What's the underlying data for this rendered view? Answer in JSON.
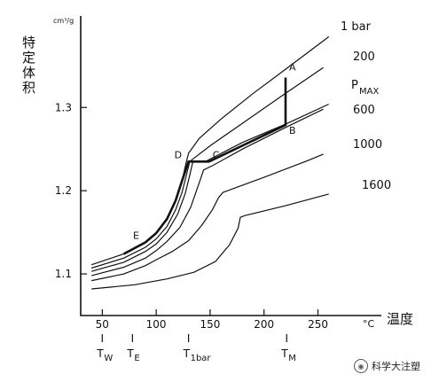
{
  "chart_data": {
    "type": "line",
    "ylabel": "特定体积",
    "yunit": "cm³/g",
    "xlabel": "温度",
    "xunit": "°C",
    "xlim": [
      30,
      280
    ],
    "ylim": [
      1.05,
      1.41
    ],
    "xticks": [
      50,
      100,
      150,
      200,
      250
    ],
    "yticks": [
      1.1,
      1.2,
      1.3
    ],
    "series": [
      {
        "name": "1 bar",
        "points": [
          [
            40,
            1.111
          ],
          [
            70,
            1.124
          ],
          [
            90,
            1.138
          ],
          [
            100,
            1.149
          ],
          [
            110,
            1.166
          ],
          [
            118,
            1.188
          ],
          [
            124,
            1.212
          ],
          [
            128,
            1.235
          ],
          [
            130,
            1.245
          ],
          [
            140,
            1.263
          ],
          [
            160,
            1.286
          ],
          [
            190,
            1.317
          ],
          [
            220,
            1.346
          ],
          [
            260,
            1.385
          ]
        ]
      },
      {
        "name": "200",
        "points": [
          [
            40,
            1.107
          ],
          [
            70,
            1.119
          ],
          [
            90,
            1.132
          ],
          [
            100,
            1.142
          ],
          [
            110,
            1.157
          ],
          [
            118,
            1.177
          ],
          [
            124,
            1.198
          ],
          [
            130,
            1.229
          ],
          [
            131,
            1.235
          ],
          [
            150,
            1.254
          ],
          [
            180,
            1.281
          ],
          [
            220,
            1.317
          ],
          [
            255,
            1.348
          ]
        ]
      },
      {
        "name": "PMAX",
        "points": [
          [
            40,
            1.103
          ],
          [
            70,
            1.114
          ],
          [
            90,
            1.127
          ],
          [
            100,
            1.136
          ],
          [
            110,
            1.15
          ],
          [
            120,
            1.172
          ],
          [
            127,
            1.197
          ],
          [
            131,
            1.218
          ],
          [
            134,
            1.235
          ],
          [
            147,
            1.236
          ],
          [
            180,
            1.258
          ],
          [
            220,
            1.28
          ],
          [
            260,
            1.304
          ]
        ]
      },
      {
        "name": "600",
        "points": [
          [
            40,
            1.098
          ],
          [
            70,
            1.108
          ],
          [
            90,
            1.119
          ],
          [
            100,
            1.128
          ],
          [
            110,
            1.139
          ],
          [
            122,
            1.156
          ],
          [
            132,
            1.18
          ],
          [
            140,
            1.21
          ],
          [
            144,
            1.225
          ],
          [
            152,
            1.23
          ],
          [
            180,
            1.25
          ],
          [
            220,
            1.276
          ],
          [
            255,
            1.298
          ]
        ]
      },
      {
        "name": "1000",
        "points": [
          [
            40,
            1.092
          ],
          [
            70,
            1.1
          ],
          [
            90,
            1.11
          ],
          [
            100,
            1.117
          ],
          [
            115,
            1.127
          ],
          [
            130,
            1.14
          ],
          [
            142,
            1.158
          ],
          [
            152,
            1.177
          ],
          [
            158,
            1.192
          ],
          [
            162,
            1.198
          ],
          [
            200,
            1.216
          ],
          [
            240,
            1.236
          ],
          [
            255,
            1.244
          ]
        ]
      },
      {
        "name": "1600",
        "points": [
          [
            40,
            1.082
          ],
          [
            80,
            1.087
          ],
          [
            110,
            1.094
          ],
          [
            135,
            1.102
          ],
          [
            155,
            1.115
          ],
          [
            168,
            1.135
          ],
          [
            176,
            1.155
          ],
          [
            178,
            1.168
          ],
          [
            182,
            1.17
          ],
          [
            220,
            1.182
          ],
          [
            260,
            1.196
          ]
        ]
      }
    ],
    "path": {
      "points": [
        [
          70,
          1.124
        ],
        [
          90,
          1.138
        ],
        [
          100,
          1.149
        ],
        [
          110,
          1.166
        ],
        [
          118,
          1.188
        ],
        [
          124,
          1.212
        ],
        [
          130,
          1.235
        ],
        [
          149,
          1.235
        ],
        [
          220,
          1.279
        ],
        [
          220,
          1.336
        ]
      ]
    },
    "points": [
      {
        "label": "A",
        "x": 220,
        "y": 1.336
      },
      {
        "label": "B",
        "x": 220,
        "y": 1.279
      },
      {
        "label": "C",
        "x": 149,
        "y": 1.235
      },
      {
        "label": "D",
        "x": 130,
        "y": 1.235
      },
      {
        "label": "E",
        "x": 90,
        "y": 1.138
      }
    ],
    "markers": [
      {
        "label": "TW",
        "x": 50
      },
      {
        "label": "TE",
        "x": 78
      },
      {
        "label": "T1bar",
        "x": 130
      },
      {
        "label": "TM",
        "x": 221
      }
    ]
  },
  "watermark": "科学大注塑"
}
